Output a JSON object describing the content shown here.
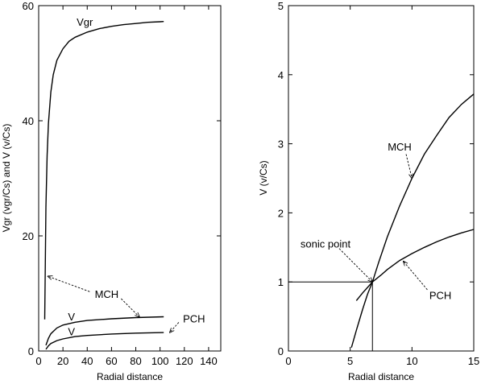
{
  "chart_data": [
    {
      "type": "line",
      "xlabel": "Radial distance",
      "ylabel": "Vgr  (vgr/Cs)  and  V  (v/Cs)",
      "xlim": [
        0,
        150
      ],
      "ylim": [
        0,
        60
      ],
      "xticks": [
        0,
        20,
        40,
        60,
        80,
        100,
        120,
        140
      ],
      "yticks": [
        0,
        20,
        40,
        60
      ],
      "grid": false,
      "series": [
        {
          "name": "Vgr",
          "x": [
            5,
            6,
            7,
            8,
            10,
            12,
            15,
            20,
            25,
            30,
            40,
            50,
            60,
            70,
            80,
            90,
            100,
            103
          ],
          "y": [
            5.5,
            25,
            34,
            39.5,
            45,
            48,
            50.5,
            52.5,
            53.8,
            54.5,
            55.4,
            56,
            56.4,
            56.7,
            56.9,
            57.1,
            57.2,
            57.25
          ]
        },
        {
          "name": "V",
          "x": [
            6,
            8,
            10,
            15,
            20,
            30,
            40,
            60,
            80,
            103
          ],
          "y": [
            1,
            2.2,
            3.0,
            4.0,
            4.5,
            5.0,
            5.3,
            5.6,
            5.8,
            5.95
          ]
        },
        {
          "name": "V",
          "x": [
            6,
            8,
            10,
            15,
            20,
            30,
            40,
            60,
            80,
            103
          ],
          "y": [
            0.3,
            0.9,
            1.3,
            1.8,
            2.1,
            2.5,
            2.7,
            2.95,
            3.1,
            3.2
          ]
        }
      ],
      "annotations": [
        {
          "text": "Vgr",
          "x": 38,
          "y": 56.5
        },
        {
          "text": "MCH",
          "x": 56,
          "y": 9.2,
          "arrow_to": [
            [
              7.5,
              13
            ],
            [
              83,
              5.9
            ]
          ]
        },
        {
          "text": "PCH",
          "x": 128,
          "y": 5.0,
          "arrow_to": [
            [
              108,
              3.2
            ]
          ]
        },
        {
          "text": "V",
          "x": 27,
          "y": 5.3
        },
        {
          "text": "V",
          "x": 27,
          "y": 2.7
        }
      ]
    },
    {
      "type": "line",
      "xlabel": "Radial distance",
      "ylabel": "V  (v/Cs)",
      "xlim": [
        0,
        15
      ],
      "ylim": [
        0,
        5
      ],
      "xticks": [
        0,
        5,
        10,
        15
      ],
      "yticks": [
        0,
        1,
        2,
        3,
        4,
        5
      ],
      "grid": false,
      "series": [
        {
          "name": "MCH",
          "x": [
            5.1,
            5.5,
            6.0,
            6.4,
            6.8,
            7.3,
            8,
            9,
            10,
            11,
            12,
            13,
            14,
            15
          ],
          "y": [
            0.05,
            0.3,
            0.6,
            0.82,
            1.0,
            1.28,
            1.65,
            2.1,
            2.5,
            2.85,
            3.12,
            3.38,
            3.57,
            3.72
          ]
        },
        {
          "name": "PCH",
          "x": [
            5.5,
            6.0,
            6.4,
            6.8,
            7.5,
            8,
            9,
            10,
            11,
            12,
            13,
            14,
            15
          ],
          "y": [
            0.73,
            0.84,
            0.92,
            1.0,
            1.1,
            1.18,
            1.31,
            1.41,
            1.5,
            1.58,
            1.65,
            1.71,
            1.76
          ]
        }
      ],
      "sonic_point": {
        "x": 6.8,
        "y": 1.0
      },
      "annotations": [
        {
          "text": "MCH",
          "x": 9.0,
          "y": 2.9,
          "arrow_to": [
            [
              10.0,
              2.5
            ]
          ]
        },
        {
          "text": "PCH",
          "x": 12.3,
          "y": 0.75,
          "arrow_to": [
            [
              9.3,
              1.3
            ]
          ]
        },
        {
          "text": "sonic point",
          "x": 3.0,
          "y": 1.5,
          "arrow_to": [
            [
              6.8,
              1.0
            ]
          ]
        }
      ]
    }
  ]
}
